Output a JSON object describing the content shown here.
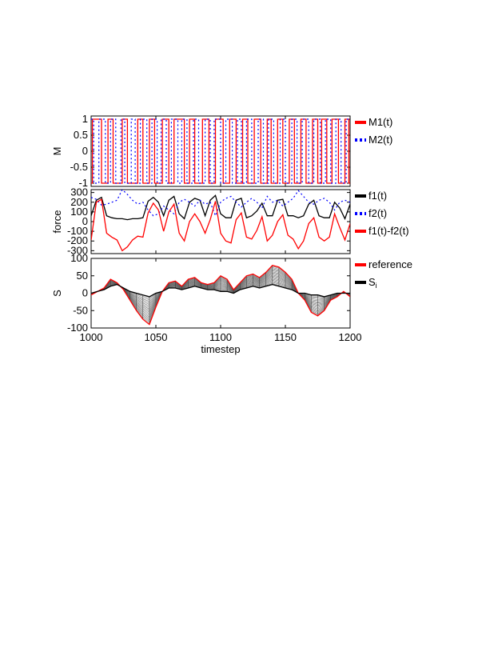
{
  "figure": {
    "xlabel": "timestep"
  },
  "chart_data": [
    {
      "type": "line",
      "panel": "M",
      "ylabel": "M",
      "xlim": [
        1000,
        1200
      ],
      "ylim": [
        -1.1,
        1.1
      ],
      "yticks": [
        "1",
        "0.5",
        "0",
        "-0.5",
        "-1"
      ],
      "ytick_values": [
        1,
        0.5,
        0,
        -0.5,
        -1
      ],
      "xticks": [
        1000,
        1050,
        1100,
        1150,
        1200
      ],
      "legend_placement": "right-outside",
      "series": [
        {
          "name": "M1(t)",
          "color": "#ff0000",
          "style": "solid",
          "switch_times": [
            1001,
            1008,
            1013,
            1017,
            1024,
            1028,
            1036,
            1040,
            1045,
            1049,
            1055,
            1060,
            1064,
            1072,
            1076,
            1080,
            1086,
            1091,
            1096,
            1102,
            1107,
            1112,
            1117,
            1121,
            1126,
            1131,
            1136,
            1139,
            1144,
            1148,
            1153,
            1157,
            1162,
            1166,
            1171,
            1175,
            1178,
            1182,
            1186,
            1191,
            1196,
            1199
          ],
          "start_value": -1
        },
        {
          "name": "M2(t)",
          "color": "#0000ff",
          "style": "dotted",
          "switch_times": [
            1002,
            1006,
            1011,
            1015,
            1019,
            1023,
            1026,
            1031,
            1034,
            1038,
            1043,
            1047,
            1051,
            1054,
            1058,
            1062,
            1067,
            1070,
            1074,
            1079,
            1083,
            1088,
            1092,
            1095,
            1100,
            1104,
            1109,
            1113,
            1116,
            1120,
            1124,
            1129,
            1133,
            1137,
            1141,
            1146,
            1150,
            1155,
            1159,
            1163,
            1168,
            1172,
            1177,
            1181,
            1185,
            1189,
            1193,
            1197
          ],
          "start_value": 1
        }
      ]
    },
    {
      "type": "line",
      "panel": "force",
      "ylabel": "force",
      "xlim": [
        1000,
        1200
      ],
      "ylim": [
        -330,
        330
      ],
      "yticks": [
        "300",
        "200",
        "100",
        "0",
        "-100",
        "-200",
        "-300"
      ],
      "ytick_values": [
        300,
        200,
        100,
        0,
        -100,
        -200,
        -300
      ],
      "xticks": [
        1000,
        1050,
        1100,
        1150,
        1200
      ],
      "legend_placement": "right-outside",
      "series": [
        {
          "name": "f1(t)",
          "color": "#000000",
          "style": "solid",
          "x": [
            1000,
            1004,
            1008,
            1012,
            1016,
            1020,
            1024,
            1028,
            1032,
            1036,
            1040,
            1044,
            1048,
            1052,
            1056,
            1060,
            1064,
            1068,
            1072,
            1076,
            1080,
            1084,
            1088,
            1092,
            1096,
            1100,
            1104,
            1108,
            1112,
            1116,
            1120,
            1124,
            1128,
            1132,
            1136,
            1140,
            1144,
            1148,
            1152,
            1156,
            1160,
            1164,
            1168,
            1172,
            1176,
            1180,
            1184,
            1188,
            1192,
            1196,
            1200
          ],
          "y": [
            60,
            220,
            250,
            60,
            40,
            30,
            30,
            20,
            30,
            30,
            40,
            210,
            250,
            200,
            60,
            220,
            260,
            80,
            30,
            200,
            240,
            220,
            60,
            220,
            270,
            80,
            40,
            40,
            220,
            240,
            40,
            60,
            110,
            190,
            60,
            60,
            220,
            230,
            60,
            60,
            40,
            60,
            180,
            220,
            60,
            40,
            40,
            200,
            140,
            30,
            180
          ]
        },
        {
          "name": "f2(t)",
          "color": "#0000ff",
          "style": "dotted",
          "x": [
            1000,
            1004,
            1008,
            1012,
            1016,
            1020,
            1024,
            1028,
            1032,
            1036,
            1040,
            1044,
            1048,
            1052,
            1056,
            1060,
            1064,
            1068,
            1072,
            1076,
            1080,
            1084,
            1088,
            1092,
            1096,
            1100,
            1104,
            1108,
            1112,
            1116,
            1120,
            1124,
            1128,
            1132,
            1136,
            1140,
            1144,
            1148,
            1152,
            1156,
            1160,
            1164,
            1168,
            1172,
            1176,
            1180,
            1184,
            1188,
            1192,
            1196,
            1200
          ],
          "y": [
            250,
            230,
            170,
            180,
            200,
            220,
            330,
            280,
            220,
            180,
            200,
            120,
            60,
            80,
            160,
            120,
            80,
            200,
            230,
            200,
            160,
            220,
            180,
            200,
            60,
            200,
            240,
            260,
            200,
            150,
            200,
            240,
            200,
            140,
            260,
            200,
            220,
            160,
            200,
            240,
            320,
            260,
            200,
            180,
            220,
            240,
            200,
            120,
            200,
            220,
            200
          ]
        },
        {
          "name": "f1(t)-f2(t)",
          "color": "#ff0000",
          "style": "solid",
          "x": [
            1000,
            1004,
            1008,
            1012,
            1016,
            1020,
            1024,
            1028,
            1032,
            1036,
            1040,
            1044,
            1048,
            1052,
            1056,
            1060,
            1064,
            1068,
            1072,
            1076,
            1080,
            1084,
            1088,
            1092,
            1096,
            1100,
            1104,
            1108,
            1112,
            1116,
            1120,
            1124,
            1128,
            1132,
            1136,
            1140,
            1144,
            1148,
            1152,
            1156,
            1160,
            1164,
            1168,
            1172,
            1176,
            1180,
            1184,
            1188,
            1192,
            1196,
            1200
          ],
          "y": [
            -190,
            200,
            230,
            -120,
            -160,
            -190,
            -300,
            -260,
            -190,
            -150,
            -160,
            90,
            190,
            120,
            -100,
            100,
            180,
            -120,
            -200,
            0,
            80,
            0,
            -120,
            20,
            210,
            -120,
            -200,
            -220,
            20,
            90,
            -160,
            -180,
            -90,
            50,
            -200,
            -140,
            0,
            70,
            -140,
            -180,
            -280,
            -200,
            -20,
            40,
            -160,
            -200,
            -160,
            80,
            -60,
            -190,
            -20
          ]
        }
      ]
    },
    {
      "type": "line",
      "panel": "S",
      "ylabel": "S",
      "xlim": [
        1000,
        1200
      ],
      "ylim": [
        -100,
        100
      ],
      "yticks": [
        "100",
        "50",
        "0",
        "-50",
        "-100"
      ],
      "ytick_values": [
        100,
        50,
        0,
        -50,
        -100
      ],
      "xticks": [
        1000,
        1050,
        1100,
        1150,
        1200
      ],
      "xticklabels": [
        "1000",
        "1050",
        "1100",
        "1150",
        "1200"
      ],
      "legend_placement": "right-outside",
      "series": [
        {
          "name": "reference",
          "color": "#ff0000",
          "style": "solid",
          "x": [
            1000,
            1005,
            1010,
            1015,
            1020,
            1025,
            1030,
            1035,
            1040,
            1045,
            1050,
            1055,
            1060,
            1065,
            1070,
            1075,
            1080,
            1085,
            1090,
            1095,
            1100,
            1105,
            1110,
            1115,
            1120,
            1125,
            1130,
            1135,
            1140,
            1145,
            1150,
            1155,
            1160,
            1165,
            1170,
            1175,
            1180,
            1185,
            1190,
            1195,
            1200
          ],
          "y": [
            -5,
            5,
            15,
            40,
            30,
            10,
            -20,
            -50,
            -75,
            -90,
            -40,
            5,
            30,
            35,
            20,
            40,
            45,
            30,
            25,
            30,
            50,
            40,
            10,
            30,
            50,
            55,
            45,
            60,
            80,
            75,
            60,
            40,
            0,
            -20,
            -55,
            -65,
            -50,
            -20,
            -10,
            5,
            -10
          ]
        },
        {
          "name": "S_i",
          "label_main": "S",
          "label_sub": "i",
          "color": "#000000",
          "style": "solid",
          "x": [
            1000,
            1005,
            1010,
            1015,
            1020,
            1025,
            1030,
            1035,
            1040,
            1045,
            1050,
            1055,
            1060,
            1065,
            1070,
            1075,
            1080,
            1085,
            1090,
            1095,
            1100,
            1105,
            1110,
            1115,
            1120,
            1125,
            1130,
            1135,
            1140,
            1145,
            1150,
            1155,
            1160,
            1165,
            1170,
            1175,
            1180,
            1185,
            1190,
            1195,
            1200
          ],
          "y": [
            0,
            5,
            10,
            20,
            25,
            15,
            5,
            0,
            -5,
            -10,
            0,
            5,
            15,
            15,
            10,
            15,
            20,
            15,
            10,
            10,
            5,
            5,
            0,
            10,
            15,
            20,
            15,
            20,
            25,
            20,
            15,
            10,
            0,
            0,
            -5,
            -5,
            -10,
            -5,
            0,
            0,
            0
          ]
        }
      ]
    }
  ]
}
